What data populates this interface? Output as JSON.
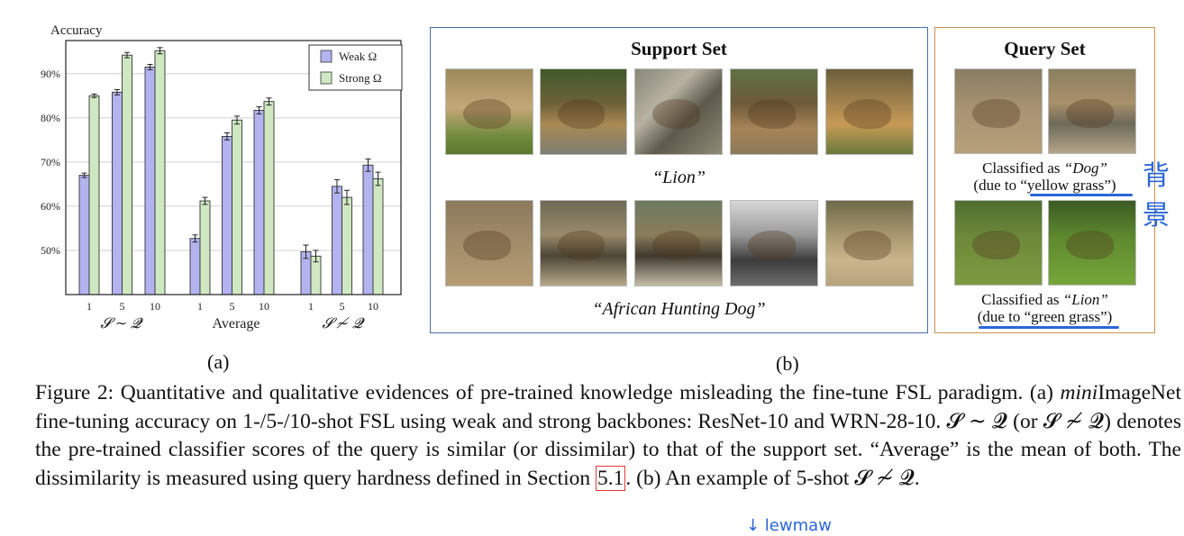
{
  "chart_data": {
    "type": "bar",
    "ylabel": "Accuracy",
    "yticks": [
      "50%",
      "60%",
      "70%",
      "80%",
      "90%"
    ],
    "ylim": [
      40,
      97.5
    ],
    "grid": true,
    "legend": "top-right",
    "groups": [
      {
        "label": "𝓢 ∼ 𝓠",
        "shots": [
          "1",
          "5",
          "10"
        ]
      },
      {
        "label": "Average",
        "shots": [
          "1",
          "5",
          "10"
        ]
      },
      {
        "label": "𝓢 ≁ 𝓠",
        "shots": [
          "1",
          "5",
          "10"
        ]
      }
    ],
    "series": [
      {
        "name": "Weak Ω",
        "color": "#b3b3f0",
        "values": [
          67.0,
          85.8,
          91.5,
          52.7,
          75.8,
          81.7,
          49.7,
          64.5,
          69.3
        ],
        "errors": [
          0.5,
          0.6,
          0.6,
          0.8,
          0.8,
          0.8,
          1.5,
          1.5,
          1.4
        ]
      },
      {
        "name": "Strong Ω",
        "color": "#cfe8c2",
        "values": [
          85.0,
          94.2,
          95.2,
          61.2,
          79.5,
          83.7,
          48.7,
          62.0,
          66.2
        ],
        "errors": [
          0.4,
          0.6,
          0.7,
          0.8,
          0.9,
          0.8,
          1.3,
          1.6,
          1.5
        ]
      }
    ]
  },
  "labels": {
    "a": "(a)",
    "b": "(b)"
  },
  "support": {
    "title": "Support Set",
    "class1": "“Lion”",
    "class2": "“African Hunting Dog”"
  },
  "query": {
    "title": "Query Set",
    "cap1_prefix": "Classified as",
    "cap1_class": "“Dog”",
    "cap1_reason": "(due to “yellow grass”)",
    "cap2_prefix": "Classified as",
    "cap2_class": "“Lion”",
    "cap2_reason": "(due to “green grass”)"
  },
  "caption": {
    "figure": "Figure 2:",
    "p1": " Quantitative and qualitative evidences of pre-trained knowledge misleading the fine-tune FSL paradigm. (a) ",
    "mini": "mini",
    "p2": "ImageNet fine-tuning accuracy on 1-/5-/10-shot FSL using weak and strong backbones: ResNet-10 and WRN-28-10. 𝓢 ∼ 𝓠 (or 𝓢 ≁ 𝓠) denotes the pre-trained classifier scores of the query is similar (or dissimilar) to that of the support set. “Average” is the mean of both. The dissimilarity is measured using query hardness defined in Section ",
    "ref": "5.1",
    "p3": ". (b) An example of 5-shot 𝓢 ≁ 𝓠."
  },
  "annotations": {
    "side_note": "背景",
    "bottom_note": "↓ lewmaw"
  }
}
